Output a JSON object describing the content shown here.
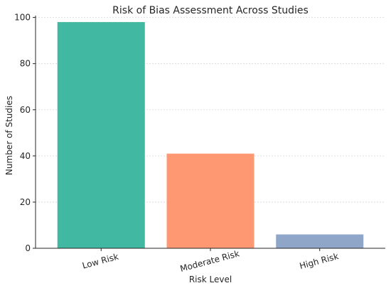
{
  "chart_data": {
    "type": "bar",
    "title": "Risk of Bias Assessment Across Studies",
    "xlabel": "Risk Level",
    "ylabel": "Number of Studies",
    "categories": [
      "Low Risk",
      "Moderate Risk",
      "High Risk"
    ],
    "values": [
      98,
      41,
      6
    ],
    "colors": [
      "#41b8a1",
      "#fe9872",
      "#8fa6c9"
    ],
    "ylim": [
      0,
      100
    ],
    "yticks": [
      0,
      20,
      40,
      60,
      80,
      100
    ],
    "grid": true,
    "grid_axis": "y"
  }
}
